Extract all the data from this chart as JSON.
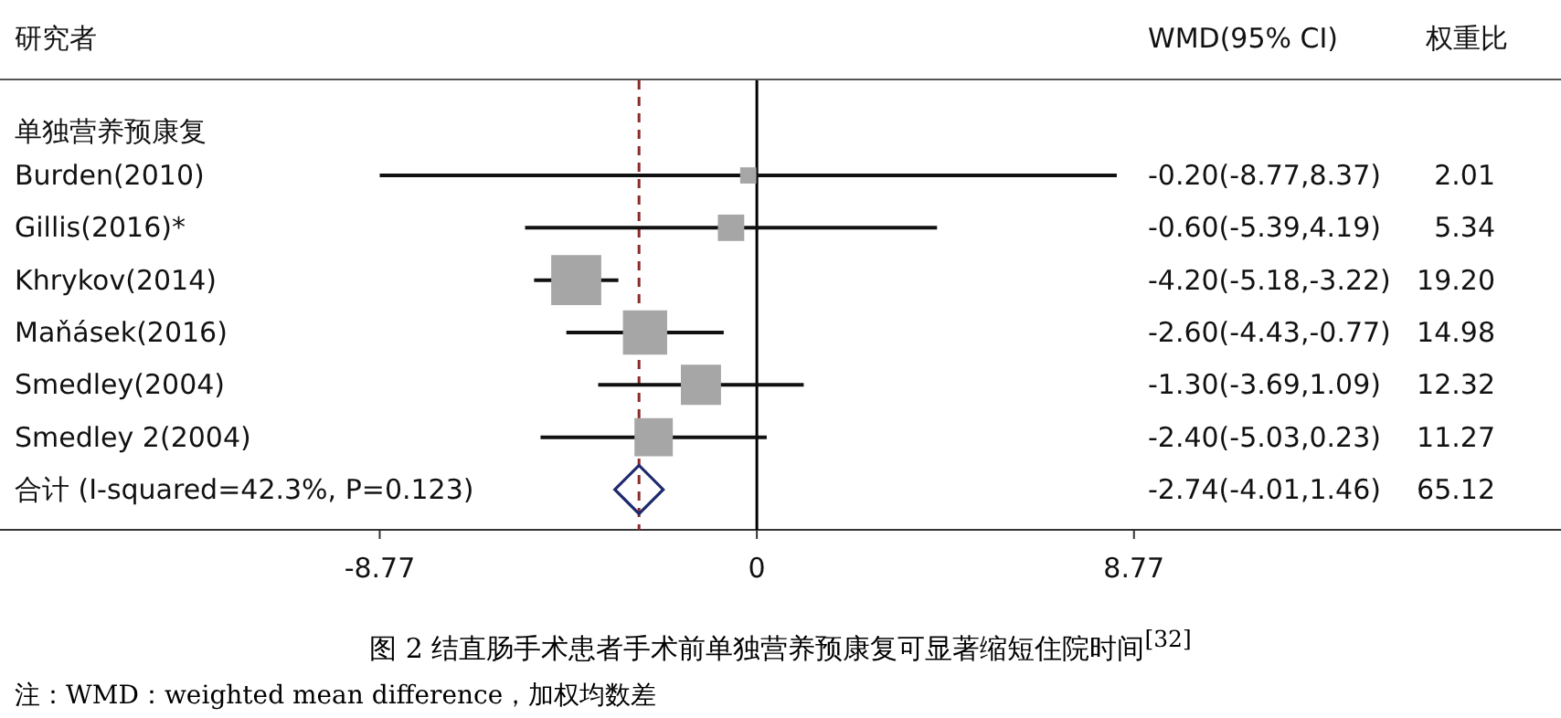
{
  "chart_data": {
    "type": "scatter",
    "title": "图 2 结直肠手术患者手术前单独营养预康复可显著缩短住院时间$^{[32]}$",
    "orientation": "horizontal",
    "categories": [
      "Burden(2010)",
      "Gillis(2016)*",
      "Khrykov(2014)",
      "Maňásek(2016)",
      "Smedley(2004)",
      "Smedley 2(2004)",
      "合计 (I-squared=42.3%, P=0.123)"
    ],
    "series": [
      {
        "type": "bubble",
        "marker": "square",
        "color": "#a6a6a6",
        "values": [
          -0.2,
          -0.6,
          -4.2,
          -2.6,
          -1.3,
          -2.4,
          null
        ],
        "errors": [
          [
            -8.77,
            8.37
          ],
          [
            -5.39,
            4.19
          ],
          [
            -5.18,
            -3.22
          ],
          [
            -4.43,
            -0.77
          ],
          [
            -3.69,
            1.09
          ],
          [
            -5.03,
            0.23
          ],
          null
        ],
        "sizes": [
          0.105,
          0.278,
          1,
          0.78,
          0.642,
          0.587,
          null
        ]
      },
      {
        "type": "scatter",
        "marker": "diamond",
        "color": "#1f2a6e",
        "values": [
          null,
          null,
          null,
          null,
          null,
          null,
          -2.74
        ]
      }
    ],
    "xlim": [
      -17.6,
      18.7
    ],
    "xticks": [
      -8.77,
      0,
      8.77
    ],
    "ref_lines": [
      {
        "axis": "x",
        "value": 0,
        "color": "#000000",
        "line_style": "solid"
      },
      {
        "axis": "x",
        "value": -2.74,
        "color": "#8b2a2a",
        "line_style": "dashed"
      }
    ],
    "annotations": [
      "研究者",
      "WMD(95% CI)",
      "权重比",
      "单独营养预康复",
      "注：WMD：weighted mean difference，加权均数差",
      "2.01",
      "5.34",
      "19.20",
      "14.98",
      "12.32",
      "11.27",
      "65.12",
      "-0.20(-8.77,8.37)",
      "-0.60(-5.39,4.19)",
      "-4.20(-5.18,-3.22)",
      "-2.60(-4.43,-0.77)",
      "-1.30(-3.69,1.09)",
      "-2.40(-5.03,0.23)",
      "-2.74(-4.01,1.46)"
    ],
    "grid": false
  }
}
